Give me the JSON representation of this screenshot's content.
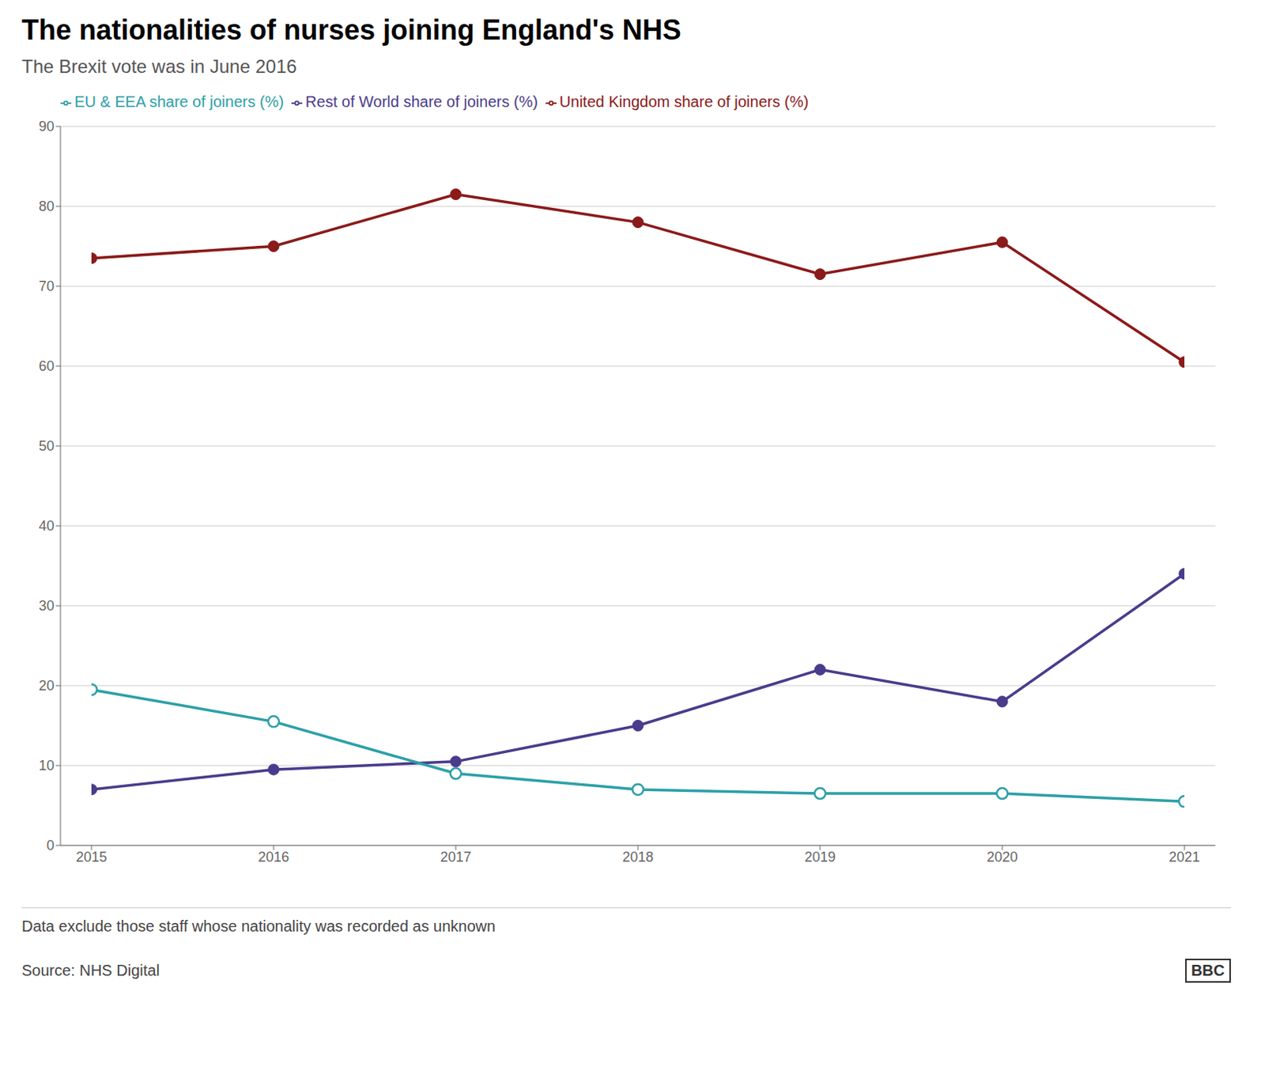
{
  "chart_data": {
    "type": "line",
    "title": "The nationalities of nurses joining England's NHS",
    "subtitle": "The Brexit vote was in June 2016",
    "note": "Data exclude those staff whose nationality was recorded as unknown",
    "source": "Source: NHS Digital",
    "logo": "BBC",
    "x": [
      2015,
      2016,
      2017,
      2018,
      2019,
      2020,
      2021
    ],
    "series": [
      {
        "name": "United Kingdom share of joiners (%)",
        "color": "#8b1a1a",
        "marker": "circle",
        "values": [
          73.5,
          75.0,
          81.5,
          78.0,
          71.5,
          75.5,
          60.5
        ]
      },
      {
        "name": "Rest of World share of joiners (%)",
        "color": "#4b3b8c",
        "marker": "circle",
        "values": [
          7.0,
          9.5,
          10.5,
          15.0,
          22.0,
          18.0,
          34.0
        ]
      },
      {
        "name": "EU & EEA share of joiners (%)",
        "color": "#2ca0a8",
        "marker": "open_circle",
        "values": [
          19.5,
          15.5,
          9.0,
          7.0,
          6.5,
          6.5,
          5.5
        ]
      }
    ],
    "xlim": [
      2015,
      2021
    ],
    "xticks": [
      2015,
      2016,
      2017,
      2018,
      2019,
      2020,
      2021
    ],
    "ylim": [
      0,
      90
    ],
    "yticks": [
      0,
      10,
      20,
      30,
      40,
      50,
      60,
      70,
      80,
      90
    ],
    "grid": true,
    "legend": "top"
  }
}
